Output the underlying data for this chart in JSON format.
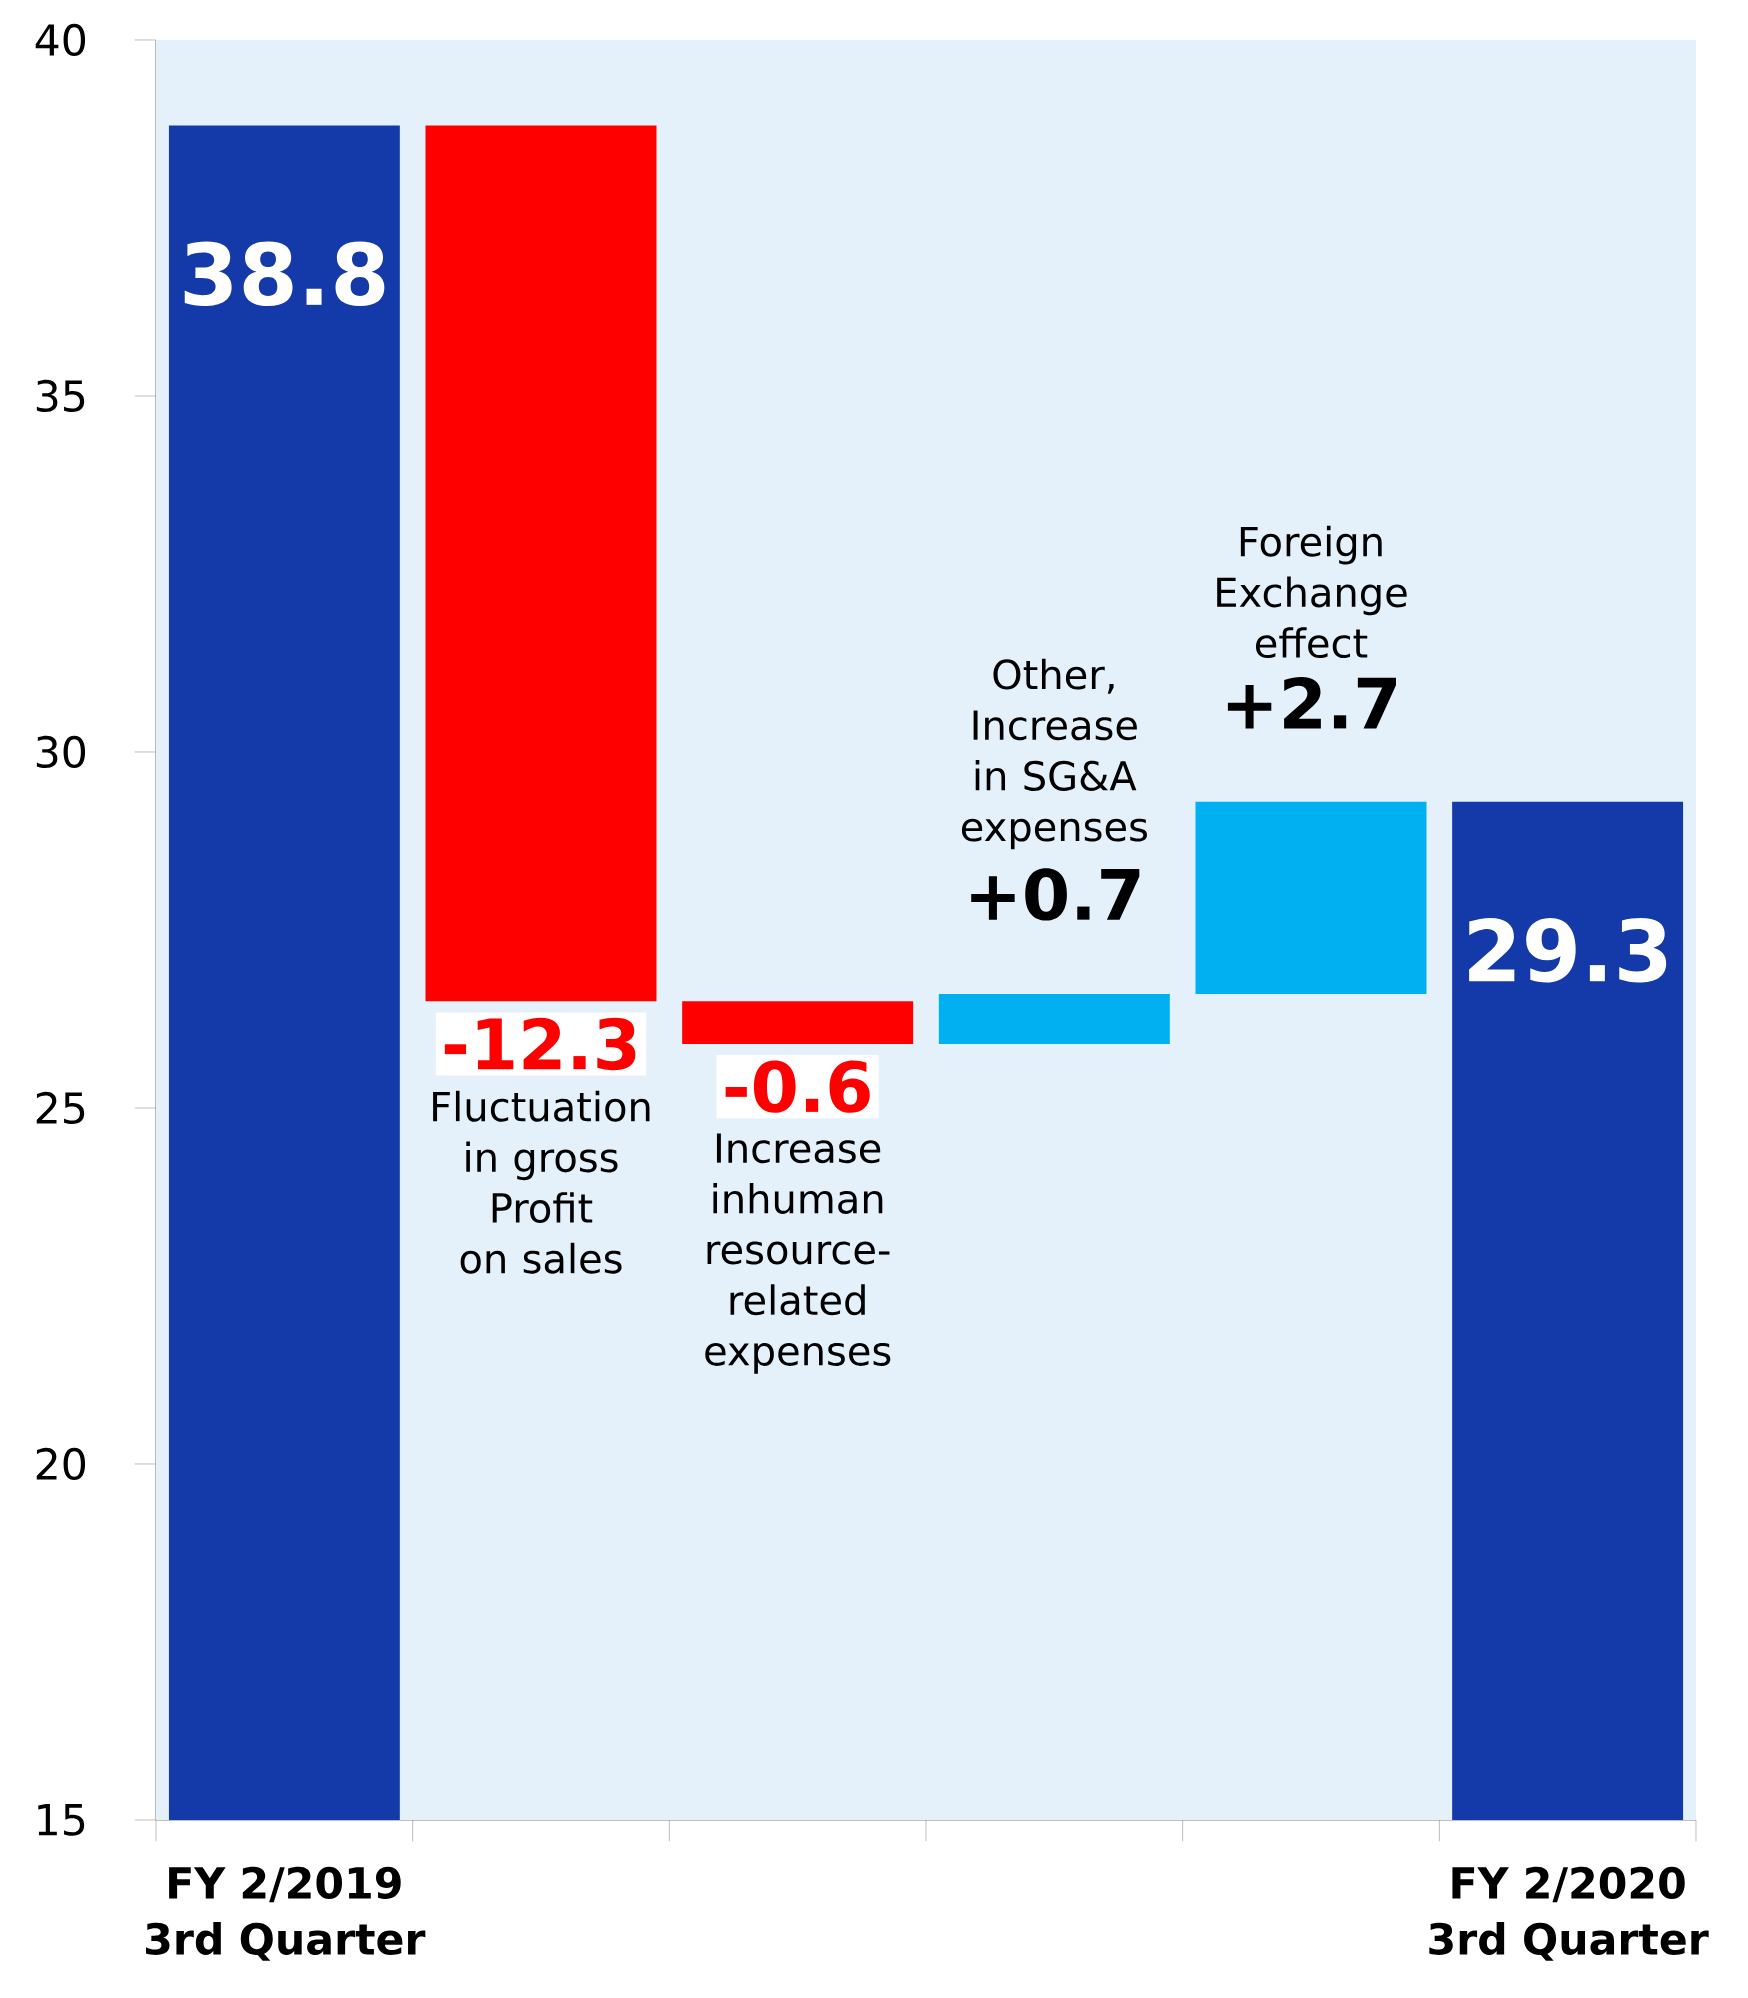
{
  "chart_data": {
    "type": "bar",
    "categories": [
      "FY 2/2019 3rd Quarter",
      null,
      null,
      null,
      null,
      "FY 2/2020 3rd Quarter"
    ],
    "values": [
      38.8,
      -12.3,
      -0.6,
      0.7,
      2.7,
      29.3
    ],
    "base": [
      null,
      38.8,
      26.5,
      25.9,
      26.6,
      null
    ],
    "colors": [
      "#1439a8",
      "#ff0000",
      "#ff0000",
      "#00b0f0",
      "#00b0f0",
      "#1439a8"
    ],
    "value_labels": [
      "38.8",
      "-12.3",
      "-0.6",
      "+0.7",
      "+2.7",
      "29.3"
    ],
    "annotations": [
      "Fluctuation in gross Profit on sales",
      "Increase inhuman resource-related expenses",
      "Other, Increase in SG&A expenses",
      "Foreign Exchange effect"
    ],
    "ylim": [
      15,
      40
    ],
    "yticks": [
      15,
      20,
      25,
      30,
      35,
      40
    ]
  }
}
